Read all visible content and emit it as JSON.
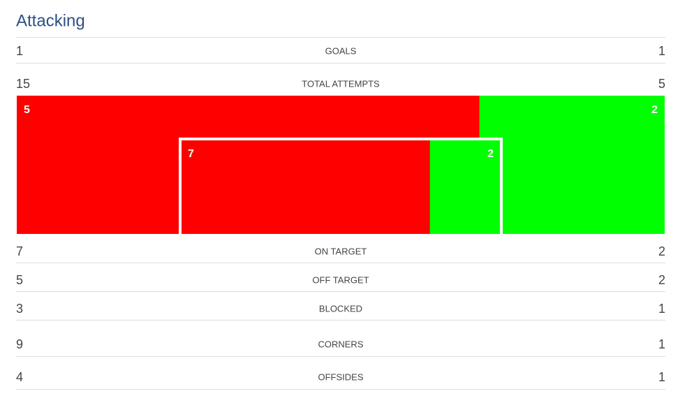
{
  "title": "Attacking",
  "rows": [
    {
      "home": 1,
      "label": "GOALS",
      "away": 1
    },
    {
      "home": 15,
      "label": "TOTAL ATTEMPTS",
      "away": 5
    },
    {
      "home": 7,
      "label": "ON TARGET",
      "away": 2
    },
    {
      "home": 5,
      "label": "OFF TARGET",
      "away": 2
    },
    {
      "home": 3,
      "label": "BLOCKED",
      "away": 1
    },
    {
      "home": 9,
      "label": "CORNERS",
      "away": 1
    },
    {
      "home": 4,
      "label": "OFFSIDES",
      "away": 1
    }
  ],
  "home_color": "#ff0000",
  "away_color": "#00ff00"
}
